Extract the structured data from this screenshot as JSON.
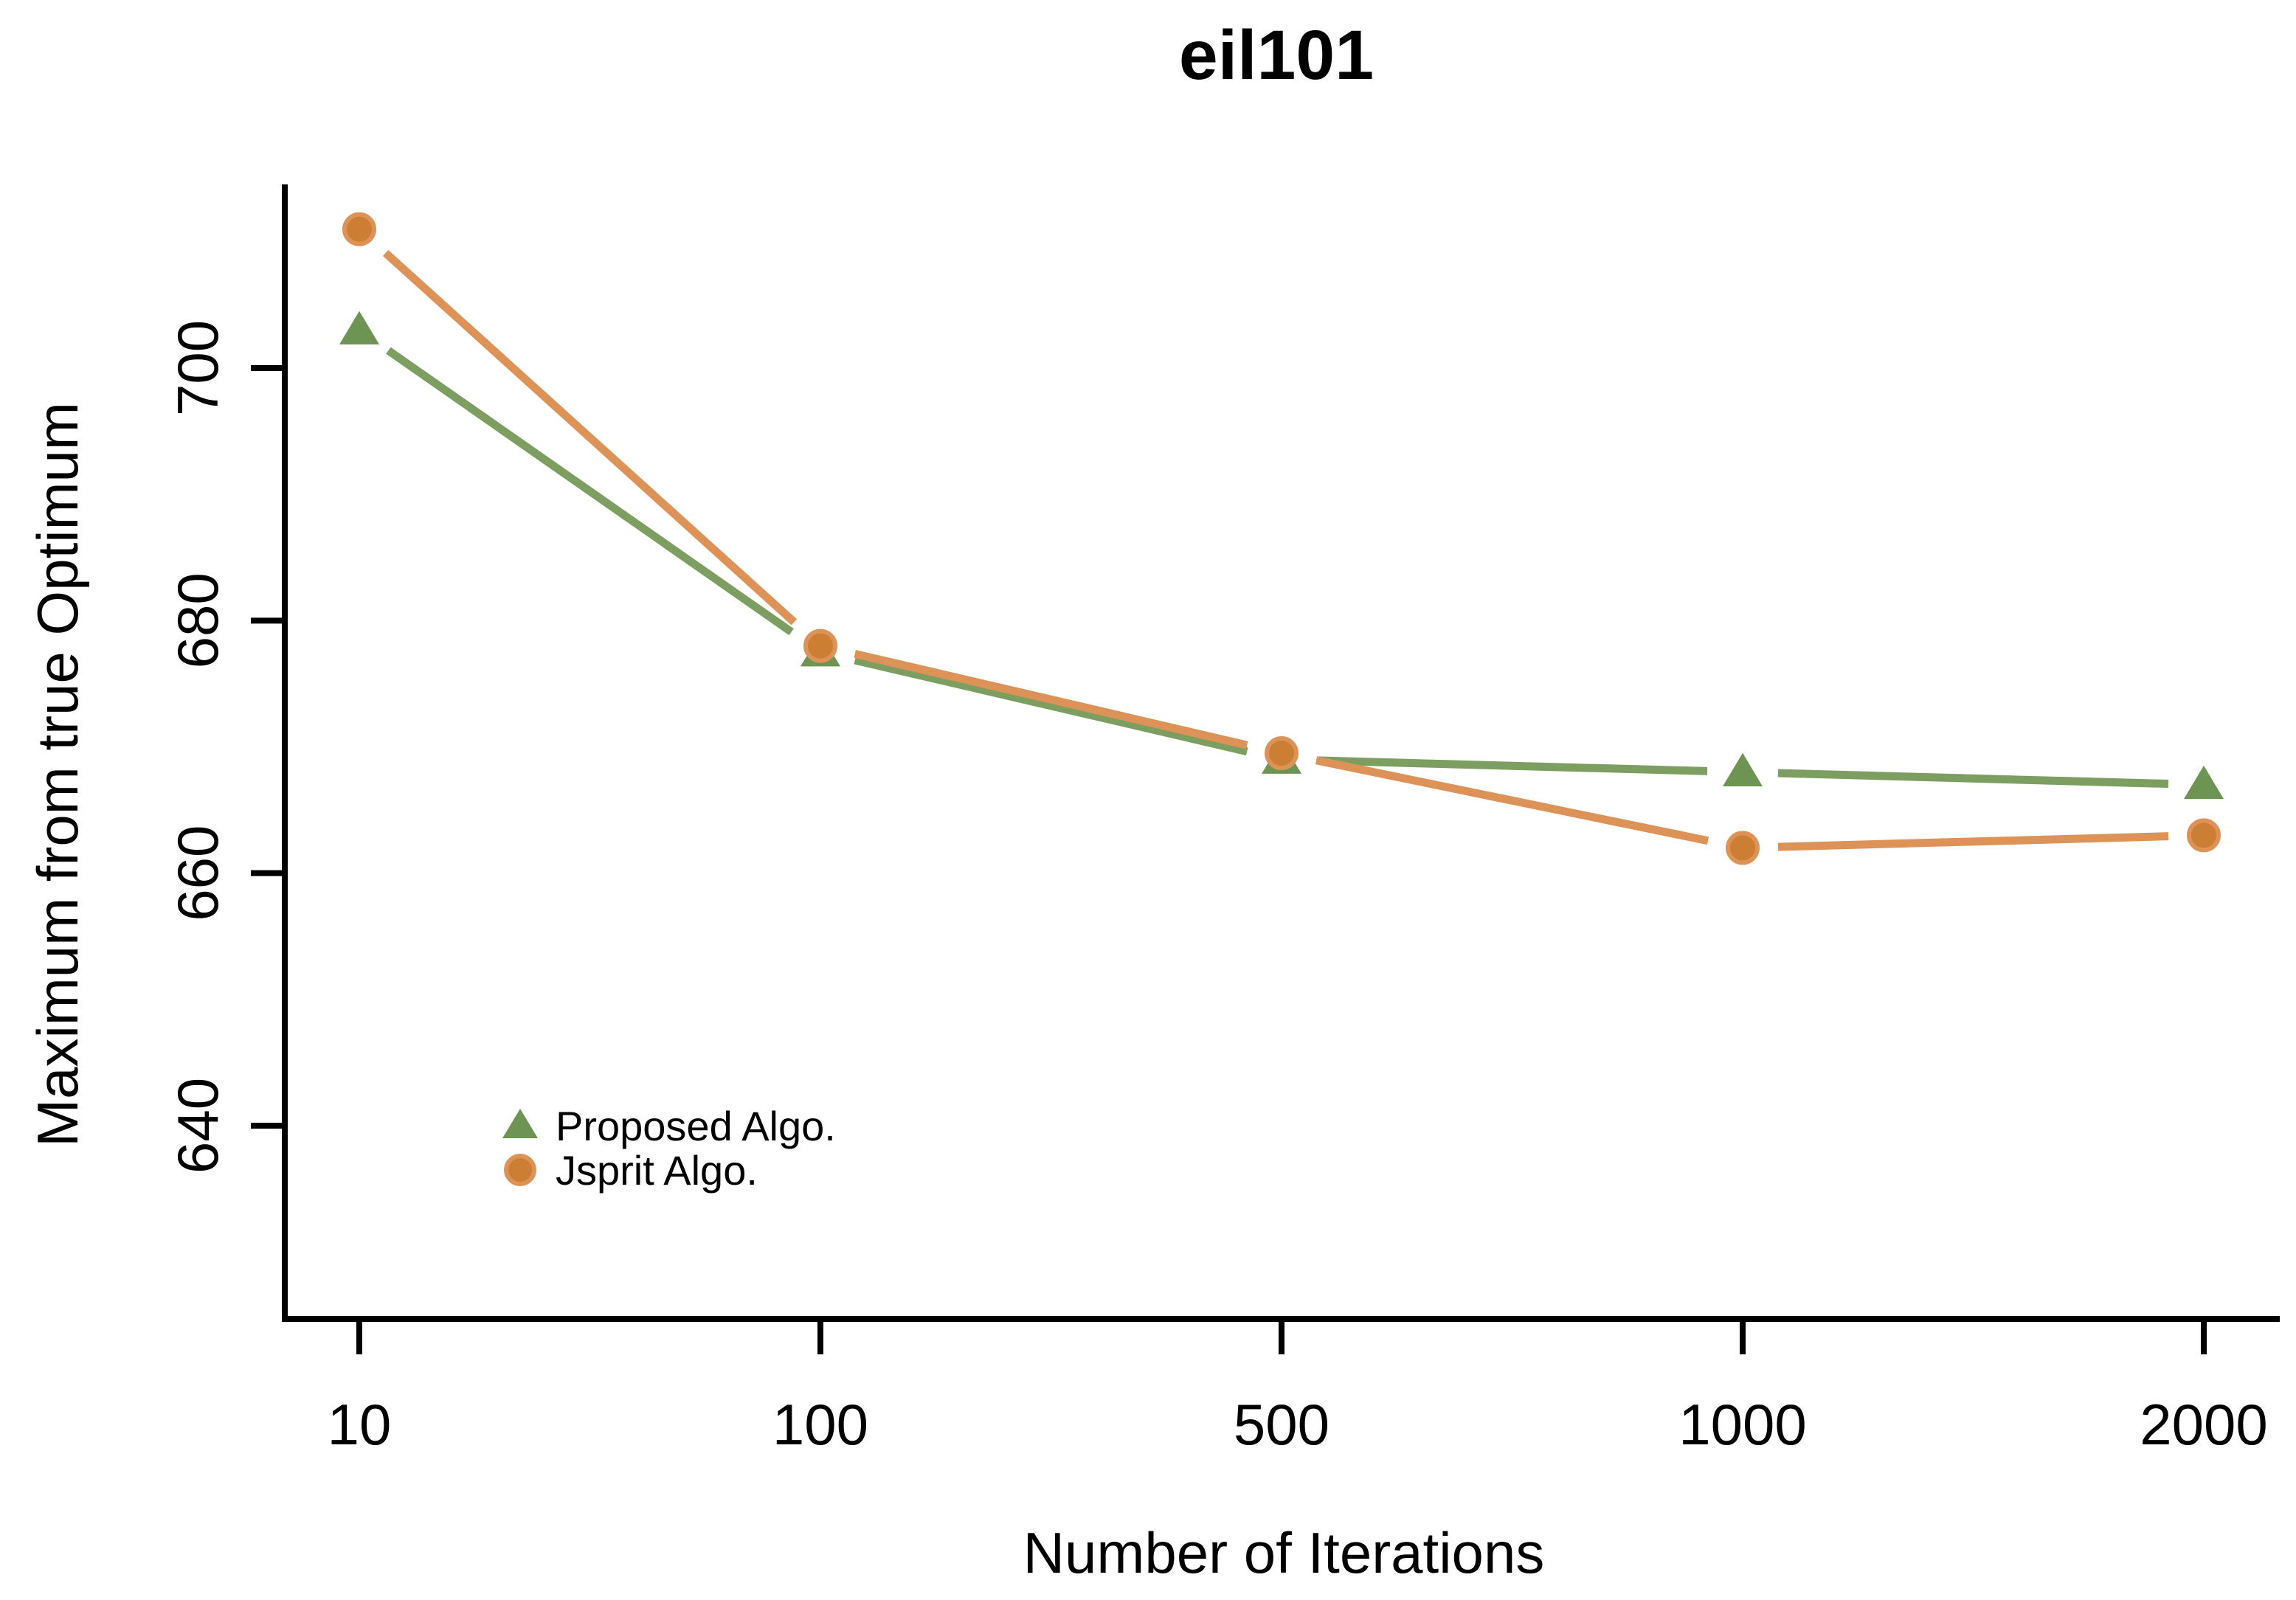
{
  "title": "eil101",
  "chart_data": {
    "type": "line",
    "title": "eil101",
    "xlabel": "Number of Iterations",
    "ylabel": "Maximum from true Optimum",
    "categories": [
      10,
      100,
      500,
      1000,
      2000
    ],
    "x_tick_labels": [
      "10",
      "100",
      "500",
      "1000",
      "2000"
    ],
    "y_ticks": [
      640,
      660,
      680,
      700
    ],
    "ylim": [
      625,
      714
    ],
    "x_axis_type": "categorical-equal-spacing",
    "grid": false,
    "background_color": "#ffffff",
    "axis_color": "#000000",
    "legend_position": "inside-lower-left",
    "series": [
      {
        "name": "Proposed Algo.",
        "marker": "triangle",
        "line_color": "#7c9e61",
        "marker_color": "#6e9454",
        "values": [
          703,
          677.5,
          669,
          668,
          667
        ]
      },
      {
        "name": "Jsprit Algo.",
        "marker": "circle",
        "line_color": "#dd9257",
        "marker_color": "#cd7e35",
        "values": [
          711,
          678,
          669.5,
          662,
          663
        ]
      }
    ]
  }
}
